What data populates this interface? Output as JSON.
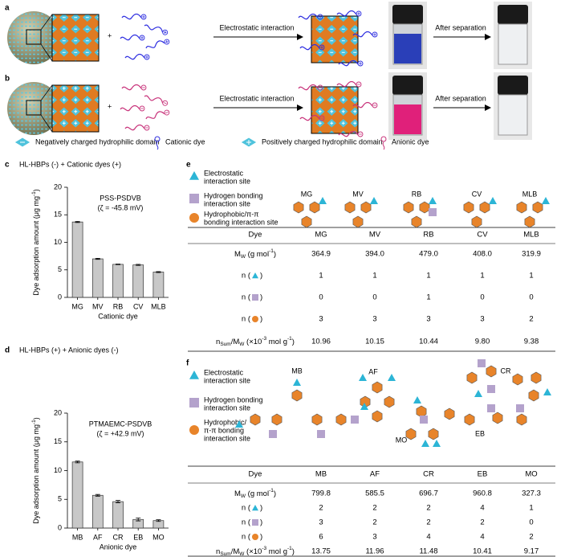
{
  "panel_labels": [
    "a",
    "b",
    "c",
    "d",
    "e",
    "f"
  ],
  "scheme": {
    "a": {
      "plus": "+",
      "interaction": "Electrostatic interaction",
      "separation": "After separation"
    },
    "b": {
      "plus": "+",
      "interaction": "Electrostatic interaction",
      "separation": "After separation"
    },
    "legend": [
      "Negatively charged hydrophilic domain",
      "Cationic dye",
      "Positively charged hydrophilic domain",
      "Anionic dye"
    ]
  },
  "chart_data": [
    {
      "type": "bar",
      "title": "HL-HBPs (-) + Cationic dyes (+)",
      "annotation": [
        "PSS-PSDVB",
        "(ζ = -45.8 mV)"
      ],
      "y_label": [
        "Dye adsorption amount (μg mg",
        "-1",
        ")"
      ],
      "x_label": "Cationic dye",
      "categories": [
        "MG",
        "MV",
        "RB",
        "CV",
        "MLB"
      ],
      "values": [
        13.7,
        7.0,
        6.0,
        5.9,
        4.6
      ],
      "errors": [
        0.1,
        0.1,
        0.05,
        0.1,
        0.08
      ],
      "color": "#c8c8c8",
      "ylim": [
        0,
        20
      ],
      "yticks": [
        0,
        5,
        10,
        15,
        20
      ]
    },
    {
      "type": "bar",
      "title": "HL-HBPs (+) + Anionic dyes (-)",
      "annotation": [
        "PTMAEMC-PSDVB",
        "(ζ = +42.9 mV)"
      ],
      "y_label": [
        "Dye adsorption amount (μg mg",
        "-1",
        ")"
      ],
      "x_label": "Anionic dye",
      "categories": [
        "MB",
        "AF",
        "CR",
        "EB",
        "MO"
      ],
      "values": [
        11.5,
        5.7,
        4.6,
        1.5,
        1.3
      ],
      "errors": [
        0.15,
        0.15,
        0.2,
        0.25,
        0.15
      ],
      "color": "#c8c8c8",
      "ylim": [
        0,
        20
      ],
      "yticks": [
        0,
        5,
        10,
        15,
        20
      ]
    }
  ],
  "table_e": {
    "legend": [
      [
        "Electrostatic",
        "interaction site"
      ],
      [
        "Hydrogen bonding",
        "interaction site"
      ],
      [
        "Hydrophobic/π-π",
        "bonding interaction site"
      ]
    ],
    "structures": [
      "MG",
      "MV",
      "RB",
      "CV",
      "MLB"
    ],
    "header": [
      "Dye",
      "MG",
      "MV",
      "RB",
      "CV",
      "MLB"
    ],
    "rows": [
      {
        "label": [
          "M",
          "W",
          " (g mol",
          "-1",
          ")"
        ],
        "cells": [
          "364.9",
          "394.0",
          "479.0",
          "408.0",
          "319.9"
        ]
      },
      {
        "label": [
          "n (",
          ")"
        ],
        "cells": [
          "1",
          "1",
          "1",
          "1",
          "1"
        ]
      },
      {
        "label": [
          "n (",
          ")"
        ],
        "cells": [
          "0",
          "0",
          "1",
          "0",
          "0"
        ]
      },
      {
        "label": [
          "n (",
          ")"
        ],
        "cells": [
          "3",
          "3",
          "3",
          "3",
          "2"
        ]
      },
      {
        "label": [
          "n",
          "Sum",
          "/M",
          "W",
          " (×10",
          "-3",
          " mol g",
          "-1",
          ")"
        ],
        "cells": [
          "10.96",
          "10.15",
          "10.44",
          "9.80",
          "9.38"
        ]
      }
    ]
  },
  "table_f": {
    "legend": [
      [
        "Electrostatic",
        "interaction site"
      ],
      [
        "Hydrogen bonding",
        "interaction site"
      ],
      [
        "Hydrophobic/",
        "π-π bonding",
        "interaction site"
      ]
    ],
    "structures": [
      "MB",
      "AF",
      "CR",
      "EB",
      "MO"
    ],
    "header": [
      "Dye",
      "MB",
      "AF",
      "CR",
      "EB",
      "MO"
    ],
    "rows": [
      {
        "label": [
          "M",
          "W",
          " (g mol",
          "-1",
          ")"
        ],
        "cells": [
          "799.8",
          "585.5",
          "696.7",
          "960.8",
          "327.3"
        ]
      },
      {
        "label": [
          "n (",
          ")"
        ],
        "cells": [
          "2",
          "2",
          "2",
          "4",
          "1"
        ]
      },
      {
        "label": [
          "n (",
          ")"
        ],
        "cells": [
          "3",
          "2",
          "2",
          "2",
          "0"
        ]
      },
      {
        "label": [
          "n (",
          ")"
        ],
        "cells": [
          "6",
          "3",
          "4",
          "4",
          "2"
        ]
      },
      {
        "label": [
          "n",
          "Sum",
          "/M",
          "W",
          " (×10",
          "-3",
          " mol g",
          "-1",
          ")"
        ],
        "cells": [
          "13.75",
          "11.96",
          "11.48",
          "10.41",
          "9.17"
        ]
      }
    ]
  }
}
